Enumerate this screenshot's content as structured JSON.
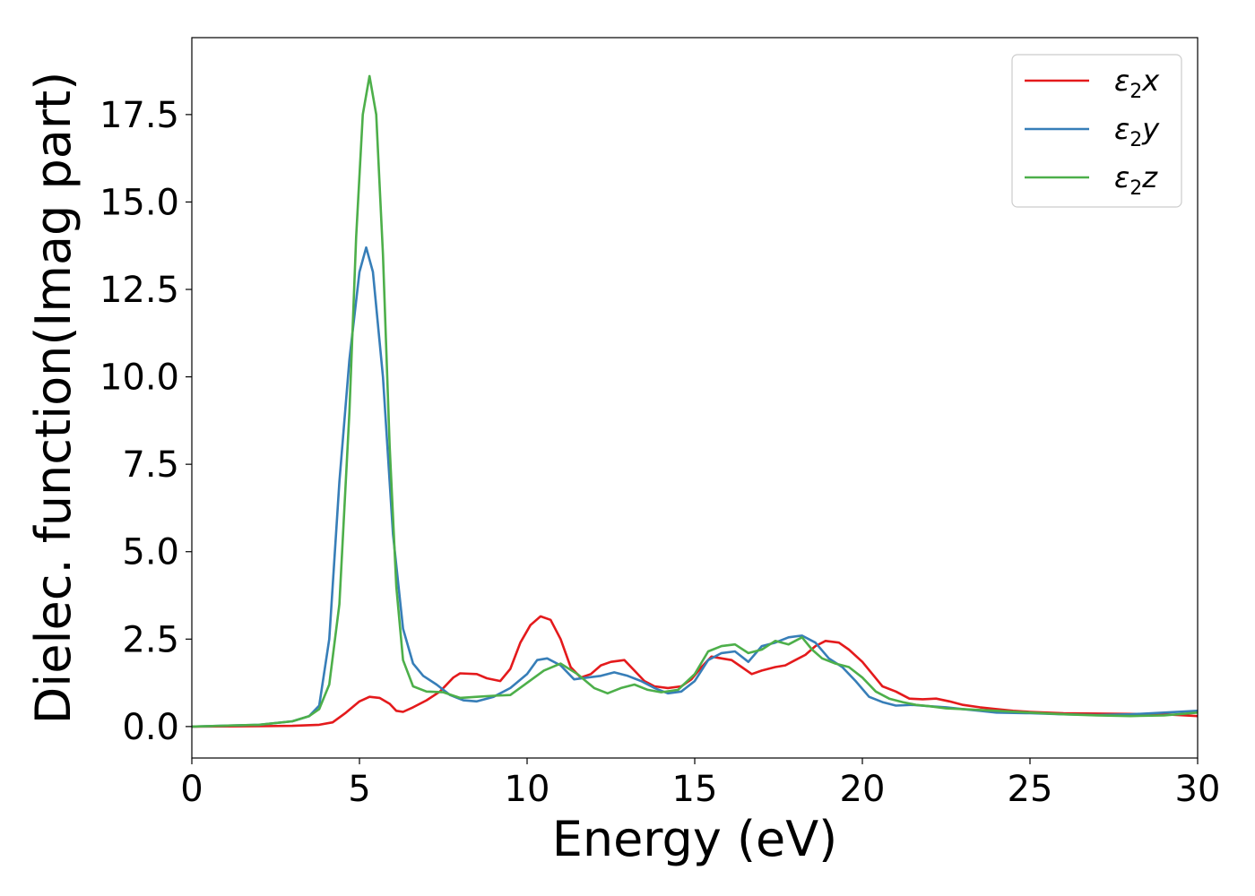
{
  "chart_data": {
    "type": "line",
    "title": "",
    "xlabel": "Energy (eV)",
    "ylabel": "Dielec. function(Imag part)",
    "xlim": [
      0,
      30
    ],
    "ylim": [
      -0.9,
      19.7
    ],
    "xticks": [
      0,
      5,
      10,
      15,
      20,
      25,
      30
    ],
    "xtick_labels": [
      "0",
      "5",
      "10",
      "15",
      "20",
      "25",
      "30"
    ],
    "yticks": [
      0.0,
      2.5,
      5.0,
      7.5,
      10.0,
      12.5,
      15.0,
      17.5
    ],
    "ytick_labels": [
      "0.0",
      "2.5",
      "5.0",
      "7.5",
      "10.0",
      "12.5",
      "15.0",
      "17.5"
    ],
    "grid": false,
    "legend_position": "top-right",
    "series": [
      {
        "name": "ε2x",
        "legend_main": "ε",
        "legend_sub": "2",
        "legend_suffix": "x",
        "color": "#e41a1c",
        "x": [
          0,
          2,
          3,
          3.8,
          4.2,
          4.6,
          5.0,
          5.3,
          5.6,
          5.9,
          6.1,
          6.3,
          6.6,
          7.0,
          7.4,
          7.8,
          8.0,
          8.5,
          8.8,
          9.2,
          9.5,
          9.8,
          10.1,
          10.4,
          10.7,
          11.0,
          11.3,
          11.6,
          11.9,
          12.2,
          12.5,
          12.9,
          13.2,
          13.5,
          13.8,
          14.2,
          14.6,
          14.9,
          15.2,
          15.5,
          15.8,
          16.1,
          16.4,
          16.7,
          17.0,
          17.4,
          17.7,
          18.0,
          18.3,
          18.6,
          18.9,
          19.3,
          19.6,
          20.0,
          20.3,
          20.6,
          21.0,
          21.4,
          21.8,
          22.2,
          22.6,
          23.0,
          23.5,
          24,
          24.5,
          25,
          25.5,
          26,
          27,
          28,
          29,
          30
        ],
        "y": [
          0.0,
          0.01,
          0.02,
          0.05,
          0.12,
          0.4,
          0.72,
          0.85,
          0.82,
          0.65,
          0.45,
          0.42,
          0.55,
          0.75,
          1.0,
          1.4,
          1.52,
          1.5,
          1.38,
          1.3,
          1.65,
          2.4,
          2.9,
          3.15,
          3.05,
          2.5,
          1.7,
          1.4,
          1.5,
          1.75,
          1.85,
          1.9,
          1.6,
          1.3,
          1.15,
          1.1,
          1.15,
          1.35,
          1.7,
          2.0,
          1.95,
          1.9,
          1.7,
          1.5,
          1.6,
          1.7,
          1.75,
          1.9,
          2.05,
          2.3,
          2.45,
          2.4,
          2.2,
          1.85,
          1.5,
          1.15,
          1.0,
          0.8,
          0.78,
          0.8,
          0.72,
          0.62,
          0.55,
          0.5,
          0.45,
          0.42,
          0.4,
          0.38,
          0.37,
          0.36,
          0.35,
          0.3
        ]
      },
      {
        "name": "ε2y",
        "legend_main": "ε",
        "legend_sub": "2",
        "legend_suffix": "y",
        "color": "#377eb8",
        "x": [
          0,
          2,
          3,
          3.5,
          3.8,
          4.1,
          4.4,
          4.7,
          5.0,
          5.2,
          5.4,
          5.7,
          6.0,
          6.3,
          6.6,
          6.9,
          7.3,
          7.7,
          8.1,
          8.5,
          9.0,
          9.5,
          10.0,
          10.3,
          10.6,
          11.0,
          11.4,
          11.8,
          12.2,
          12.6,
          13.0,
          13.4,
          13.8,
          14.2,
          14.6,
          15.0,
          15.4,
          15.8,
          16.2,
          16.6,
          17.0,
          17.4,
          17.8,
          18.2,
          18.6,
          19.0,
          19.4,
          19.8,
          20.2,
          20.6,
          21.0,
          21.5,
          22,
          22.5,
          23,
          23.5,
          24,
          25,
          26,
          27,
          28,
          29,
          30
        ],
        "y": [
          0.0,
          0.05,
          0.15,
          0.3,
          0.6,
          2.5,
          7.0,
          10.5,
          13.0,
          13.7,
          13.0,
          10.0,
          5.5,
          2.8,
          1.8,
          1.45,
          1.2,
          0.9,
          0.75,
          0.72,
          0.85,
          1.1,
          1.5,
          1.9,
          1.95,
          1.75,
          1.35,
          1.4,
          1.45,
          1.55,
          1.45,
          1.3,
          1.1,
          0.95,
          1.0,
          1.3,
          1.9,
          2.1,
          2.15,
          1.85,
          2.3,
          2.4,
          2.55,
          2.6,
          2.4,
          1.95,
          1.7,
          1.3,
          0.85,
          0.7,
          0.6,
          0.62,
          0.58,
          0.55,
          0.5,
          0.45,
          0.4,
          0.38,
          0.35,
          0.33,
          0.35,
          0.4,
          0.45
        ]
      },
      {
        "name": "ε2z",
        "legend_main": "ε",
        "legend_sub": "2",
        "legend_suffix": "z",
        "color": "#4daf4a",
        "x": [
          0,
          2,
          3,
          3.5,
          3.8,
          4.1,
          4.4,
          4.7,
          4.9,
          5.1,
          5.3,
          5.5,
          5.7,
          5.9,
          6.1,
          6.3,
          6.6,
          7.0,
          7.5,
          8.0,
          8.5,
          9.0,
          9.5,
          10.0,
          10.5,
          11.0,
          11.5,
          12.0,
          12.4,
          12.8,
          13.2,
          13.6,
          14.0,
          14.5,
          15.0,
          15.4,
          15.8,
          16.2,
          16.6,
          17.0,
          17.4,
          17.8,
          18.2,
          18.5,
          18.8,
          19.2,
          19.6,
          20.0,
          20.4,
          20.8,
          21.2,
          21.6,
          22,
          22.5,
          23,
          24,
          25,
          26,
          27,
          28,
          29,
          30
        ],
        "y": [
          0.0,
          0.05,
          0.15,
          0.3,
          0.5,
          1.2,
          3.5,
          9.0,
          14.0,
          17.5,
          18.6,
          17.5,
          13.5,
          8.0,
          4.0,
          1.9,
          1.15,
          1.0,
          0.98,
          0.82,
          0.85,
          0.88,
          0.9,
          1.25,
          1.6,
          1.8,
          1.5,
          1.1,
          0.95,
          1.1,
          1.2,
          1.05,
          0.98,
          1.05,
          1.5,
          2.15,
          2.3,
          2.35,
          2.1,
          2.2,
          2.45,
          2.35,
          2.55,
          2.2,
          1.95,
          1.8,
          1.7,
          1.4,
          1.0,
          0.8,
          0.7,
          0.62,
          0.58,
          0.52,
          0.5,
          0.45,
          0.4,
          0.35,
          0.32,
          0.3,
          0.32,
          0.4
        ]
      }
    ]
  }
}
